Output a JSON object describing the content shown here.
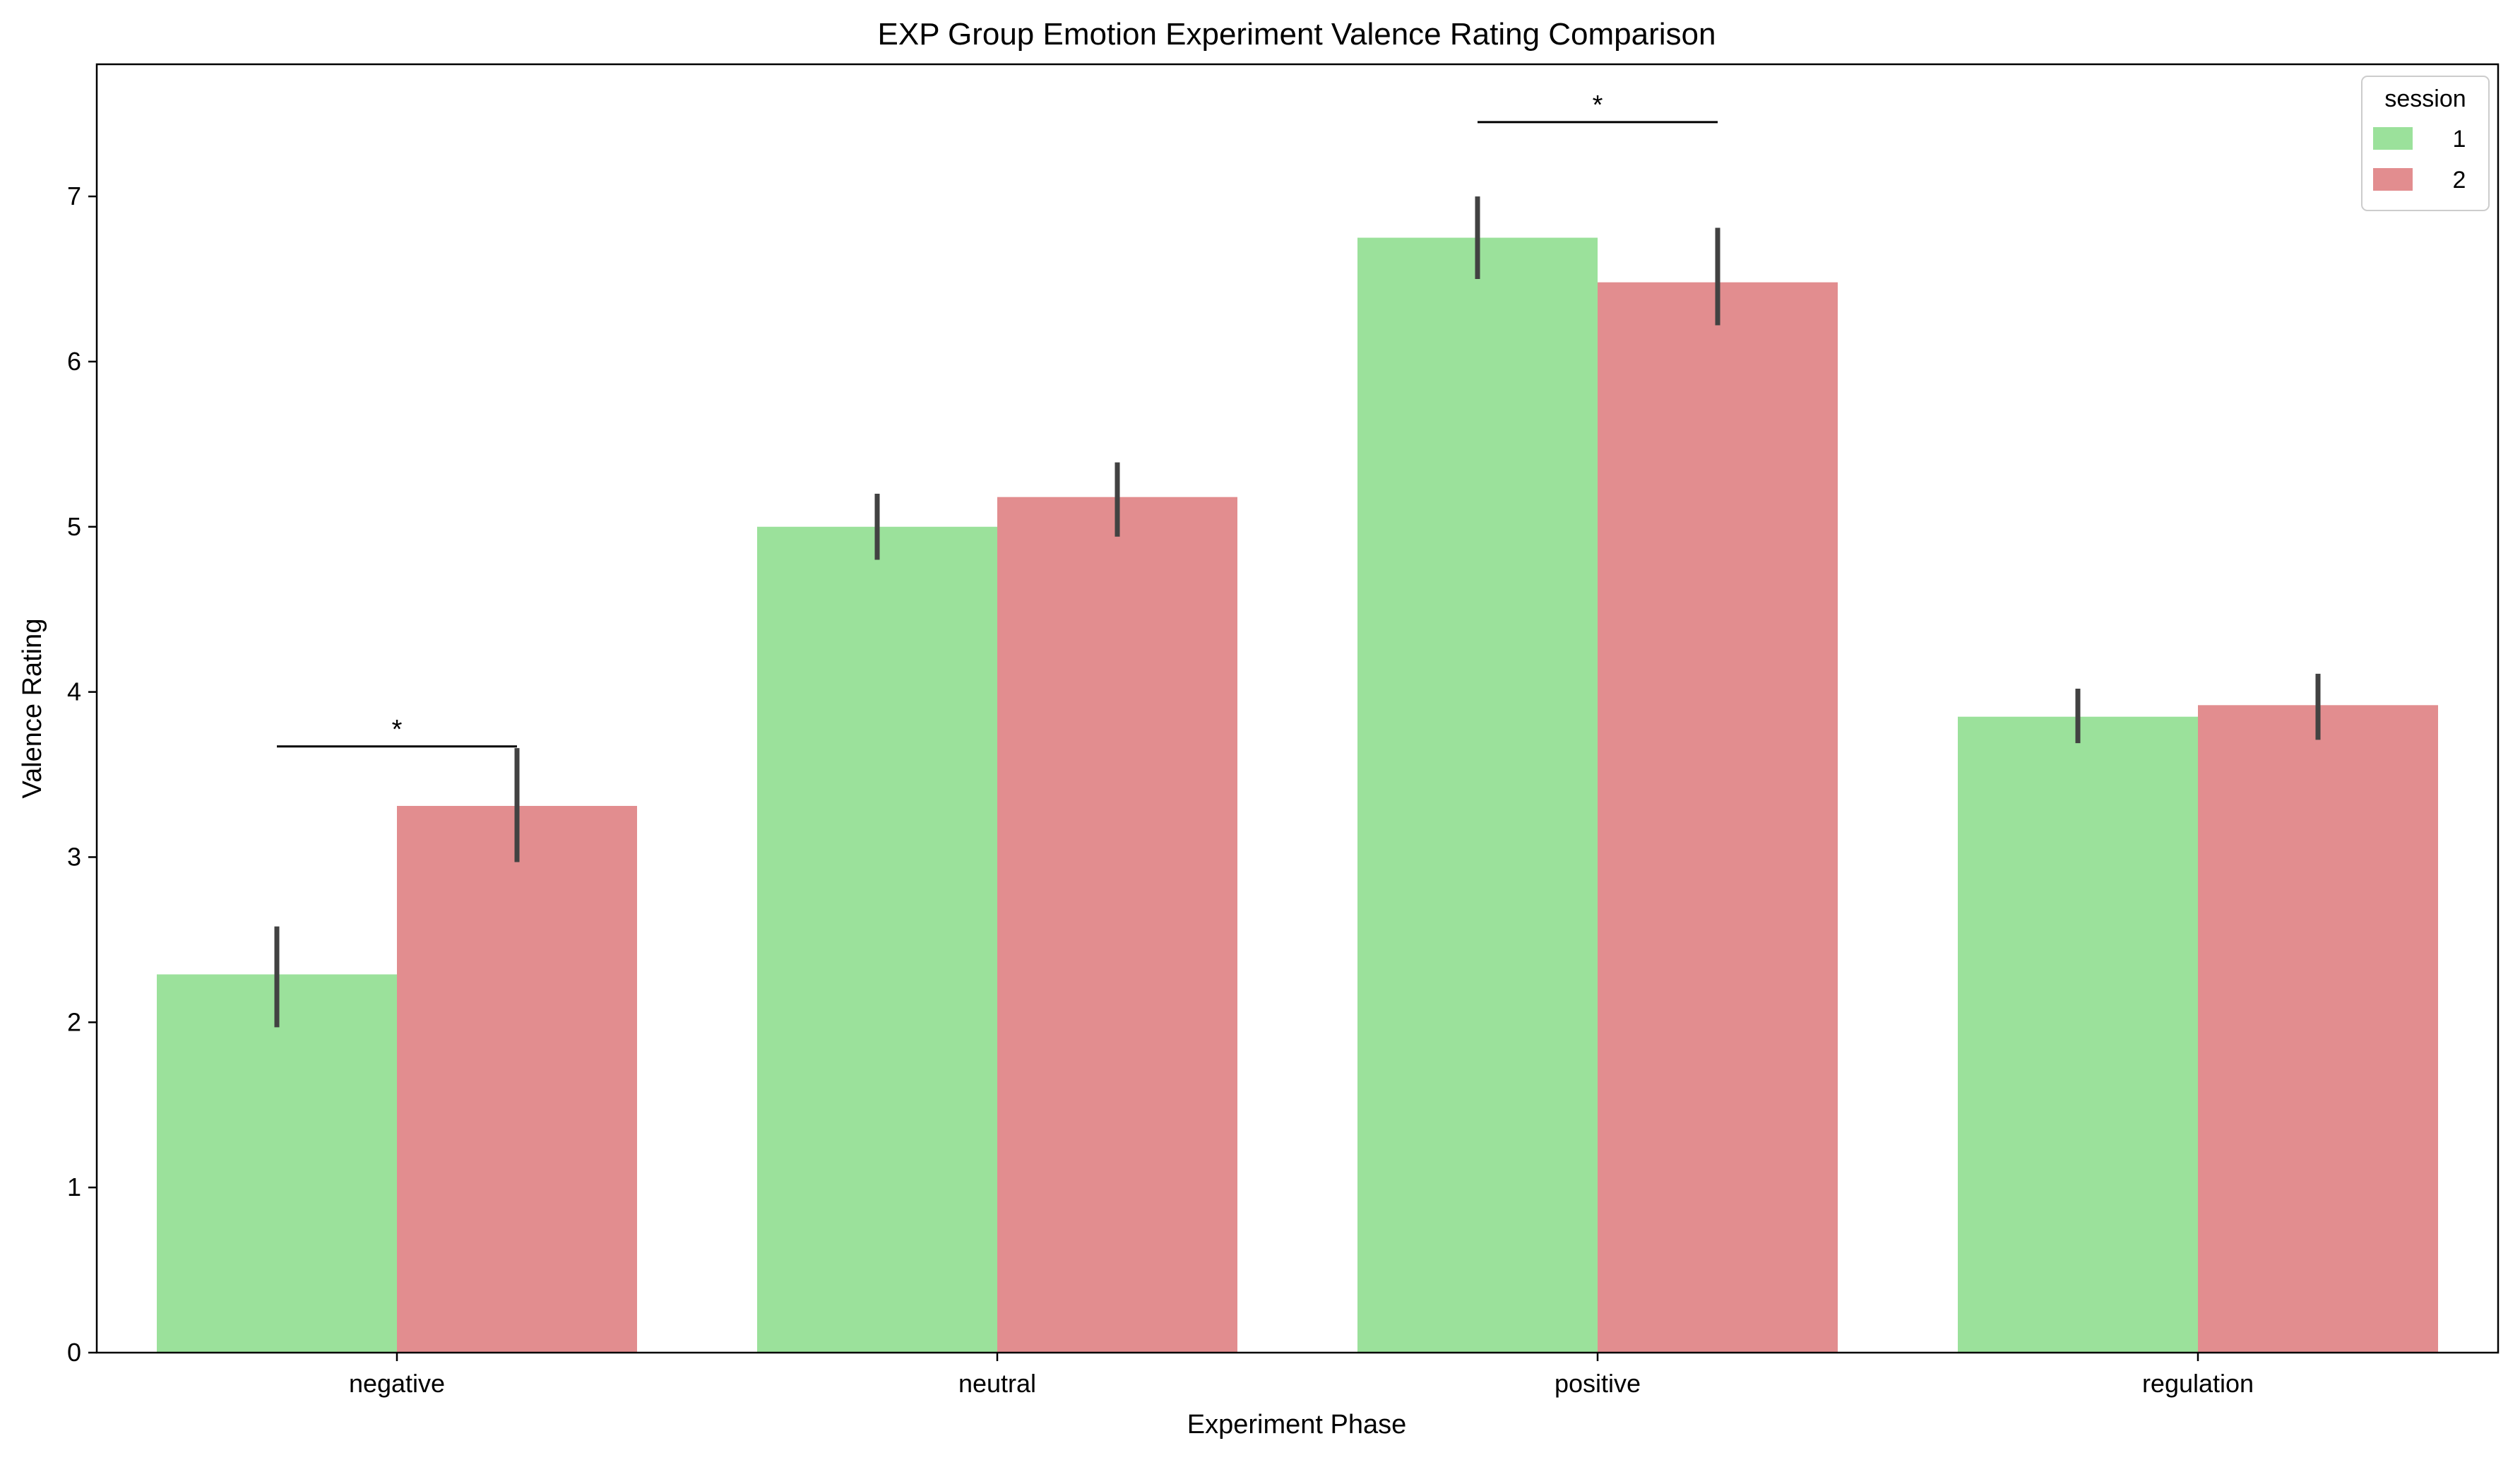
{
  "chart_data": {
    "type": "bar",
    "title": "EXP Group Emotion Experiment Valence Rating Comparison",
    "xlabel": "Experiment Phase",
    "ylabel": "Valence Rating",
    "categories": [
      "negative",
      "neutral",
      "positive",
      "regulation"
    ],
    "ylim": [
      0,
      7.8
    ],
    "yticks": [
      0,
      1,
      2,
      3,
      4,
      5,
      6,
      7
    ],
    "grid": false,
    "legend": {
      "title": "session",
      "position": "top-right"
    },
    "series": [
      {
        "name": "1",
        "color": "#9be19b",
        "values": [
          2.29,
          5.0,
          6.75,
          3.85
        ],
        "error_low": [
          1.97,
          4.8,
          6.5,
          3.69
        ],
        "error_high": [
          2.58,
          5.2,
          7.0,
          4.02
        ]
      },
      {
        "name": "2",
        "color": "#e28d8f",
        "values": [
          3.31,
          5.18,
          6.48,
          3.92
        ],
        "error_low": [
          2.97,
          4.94,
          6.22,
          3.71
        ],
        "error_high": [
          3.66,
          5.39,
          6.81,
          4.11
        ]
      }
    ],
    "annotations": [
      {
        "category": "negative",
        "label": "*",
        "y": 3.67
      },
      {
        "category": "positive",
        "label": "*",
        "y": 7.45
      }
    ]
  }
}
